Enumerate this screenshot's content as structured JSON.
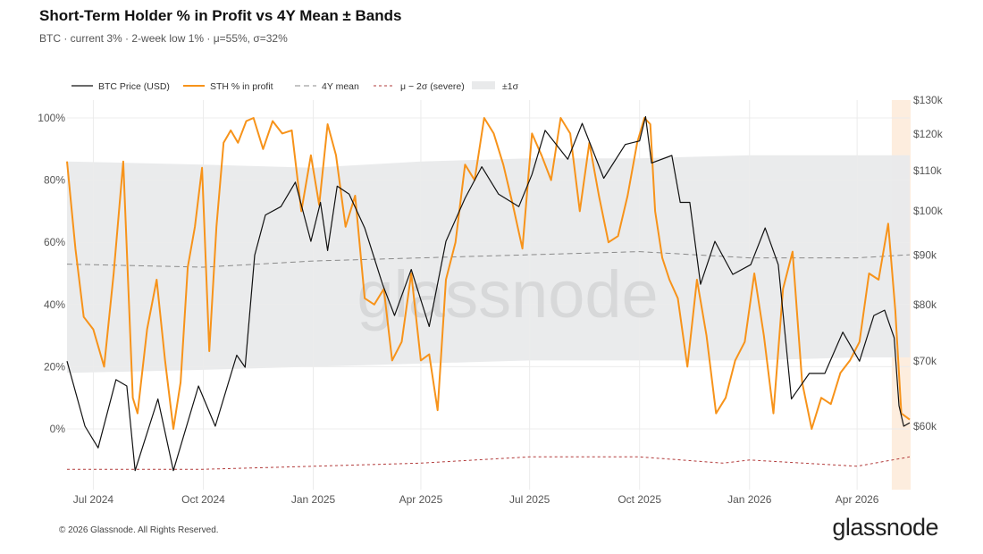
{
  "header": {
    "title": "Short-Term Holder % in Profit vs 4Y Mean ± Bands",
    "subtitle": "BTC · current 3% · 2-week low 1% · μ=55%, σ=32%"
  },
  "footer": {
    "copyright": "© 2026 Glassnode. All Rights Reserved.",
    "brand": "glassnode",
    "watermark": "glassnode"
  },
  "colors": {
    "price": "#111111",
    "sth": "#f7931a",
    "mean": "#8a8a8a",
    "severe": "#b23a3a",
    "band": "#e9eaeb",
    "highlight": "#fde9d6"
  },
  "chart_data": {
    "type": "line",
    "title": "Short-Term Holder % in Profit vs 4Y Mean ± Bands",
    "x_range": [
      "2024-06-09",
      "2026-05-15"
    ],
    "highlight_range": [
      "2026-04-30",
      "2026-05-16"
    ],
    "legend": {
      "placement": "top-left"
    },
    "x_ticks": [
      {
        "date": "2024-07-01",
        "label": "Jul 2024"
      },
      {
        "date": "2024-10-01",
        "label": "Oct 2024"
      },
      {
        "date": "2025-01-01",
        "label": "Jan 2025"
      },
      {
        "date": "2025-04-01",
        "label": "Apr 2025"
      },
      {
        "date": "2025-07-01",
        "label": "Jul 2025"
      },
      {
        "date": "2025-10-01",
        "label": "Oct 2025"
      },
      {
        "date": "2026-01-01",
        "label": "Jan 2026"
      },
      {
        "date": "2026-04-01",
        "label": "Apr 2026"
      }
    ],
    "y_left": {
      "unit": "%",
      "ticks": [
        0,
        20,
        40,
        60,
        80,
        100
      ],
      "labels": [
        "0%",
        "20%",
        "40%",
        "60%",
        "80%",
        "100%"
      ],
      "range": [
        -13,
        102
      ]
    },
    "y_right": {
      "unit": "USD",
      "scale": "log",
      "ticks": [
        60000,
        70000,
        80000,
        90000,
        100000,
        110000,
        120000,
        130000
      ],
      "labels": [
        "$60k",
        "$70k",
        "$80k",
        "$90k",
        "$100k",
        "$110k",
        "$120k",
        "$130k"
      ],
      "range": [
        52000,
        130000
      ]
    },
    "band": {
      "name": "±1σ",
      "x": [
        "2024-06-09",
        "2024-10-01",
        "2025-01-01",
        "2025-04-01",
        "2025-07-01",
        "2025-10-01",
        "2026-01-01",
        "2026-04-01",
        "2026-05-15"
      ],
      "upper": [
        86,
        85,
        84,
        86,
        87,
        87,
        88,
        88,
        88
      ],
      "lower": [
        18,
        19,
        20,
        21,
        22,
        22,
        22,
        23,
        23
      ]
    },
    "series": [
      {
        "name": "BTC Price (USD)",
        "axis": "right",
        "x": [
          "2024-06-09",
          "2024-06-24",
          "2024-07-05",
          "2024-07-20",
          "2024-07-29",
          "2024-08-05",
          "2024-08-24",
          "2024-09-06",
          "2024-09-27",
          "2024-10-11",
          "2024-10-29",
          "2024-11-05",
          "2024-11-13",
          "2024-11-22",
          "2024-12-05",
          "2024-12-17",
          "2024-12-30",
          "2025-01-07",
          "2025-01-13",
          "2025-01-21",
          "2025-01-31",
          "2025-02-13",
          "2025-02-28",
          "2025-03-10",
          "2025-03-24",
          "2025-04-08",
          "2025-04-22",
          "2025-05-08",
          "2025-05-22",
          "2025-06-05",
          "2025-06-22",
          "2025-07-03",
          "2025-07-14",
          "2025-08-02",
          "2025-08-14",
          "2025-09-01",
          "2025-09-19",
          "2025-10-01",
          "2025-10-06",
          "2025-10-11",
          "2025-10-28",
          "2025-11-04",
          "2025-11-12",
          "2025-11-21",
          "2025-12-03",
          "2025-12-18",
          "2026-01-02",
          "2026-01-14",
          "2026-01-25",
          "2026-02-05",
          "2026-02-20",
          "2026-03-05",
          "2026-03-20",
          "2026-04-03",
          "2026-04-15",
          "2026-04-24",
          "2026-05-02",
          "2026-05-06",
          "2026-05-10",
          "2026-05-15"
        ],
        "values": [
          70000,
          60000,
          57000,
          67000,
          66000,
          54000,
          64000,
          54000,
          66000,
          60000,
          71000,
          69000,
          90000,
          99000,
          101000,
          107000,
          93000,
          102000,
          91000,
          106000,
          104000,
          96000,
          84000,
          78000,
          87000,
          76000,
          93000,
          103000,
          111000,
          104000,
          101000,
          109000,
          121000,
          113000,
          123000,
          108000,
          117000,
          118000,
          125000,
          112000,
          114000,
          102000,
          102000,
          84000,
          93000,
          86000,
          88000,
          96000,
          88000,
          64000,
          68000,
          68000,
          75000,
          70000,
          78000,
          79000,
          74000,
          63000,
          60000,
          60500
        ]
      },
      {
        "name": "STH % in profit",
        "axis": "left",
        "x": [
          "2024-06-09",
          "2024-06-16",
          "2024-06-23",
          "2024-07-01",
          "2024-07-10",
          "2024-07-18",
          "2024-07-26",
          "2024-08-03",
          "2024-08-07",
          "2024-08-15",
          "2024-08-23",
          "2024-08-30",
          "2024-09-06",
          "2024-09-12",
          "2024-09-18",
          "2024-09-24",
          "2024-09-30",
          "2024-10-06",
          "2024-10-12",
          "2024-10-18",
          "2024-10-24",
          "2024-10-30",
          "2024-11-06",
          "2024-11-12",
          "2024-11-20",
          "2024-11-28",
          "2024-12-06",
          "2024-12-14",
          "2024-12-22",
          "2024-12-30",
          "2025-01-06",
          "2025-01-13",
          "2025-01-20",
          "2025-01-28",
          "2025-02-05",
          "2025-02-13",
          "2025-02-21",
          "2025-03-01",
          "2025-03-08",
          "2025-03-16",
          "2025-03-24",
          "2025-04-01",
          "2025-04-08",
          "2025-04-15",
          "2025-04-22",
          "2025-04-30",
          "2025-05-08",
          "2025-05-16",
          "2025-05-24",
          "2025-06-01",
          "2025-06-09",
          "2025-06-17",
          "2025-06-25",
          "2025-07-03",
          "2025-07-11",
          "2025-07-19",
          "2025-07-27",
          "2025-08-04",
          "2025-08-12",
          "2025-08-20",
          "2025-08-28",
          "2025-09-05",
          "2025-09-13",
          "2025-09-21",
          "2025-09-29",
          "2025-10-05",
          "2025-10-10",
          "2025-10-14",
          "2025-10-20",
          "2025-10-26",
          "2025-11-02",
          "2025-11-10",
          "2025-11-18",
          "2025-11-26",
          "2025-12-04",
          "2025-12-12",
          "2025-12-20",
          "2025-12-28",
          "2026-01-05",
          "2026-01-13",
          "2026-01-21",
          "2026-01-29",
          "2026-02-06",
          "2026-02-14",
          "2026-02-22",
          "2026-03-02",
          "2026-03-10",
          "2026-03-18",
          "2026-03-26",
          "2026-04-03",
          "2026-04-11",
          "2026-04-19",
          "2026-04-27",
          "2026-05-03",
          "2026-05-08",
          "2026-05-15"
        ],
        "values": [
          86,
          58,
          36,
          32,
          20,
          50,
          86,
          10,
          5,
          32,
          48,
          22,
          0,
          15,
          52,
          65,
          84,
          25,
          65,
          92,
          96,
          92,
          99,
          100,
          90,
          99,
          95,
          96,
          70,
          88,
          72,
          98,
          88,
          65,
          75,
          42,
          40,
          45,
          22,
          28,
          50,
          22,
          24,
          6,
          48,
          60,
          85,
          80,
          100,
          95,
          85,
          72,
          58,
          95,
          88,
          80,
          100,
          95,
          70,
          92,
          75,
          60,
          62,
          75,
          92,
          100,
          98,
          70,
          55,
          48,
          42,
          20,
          48,
          30,
          5,
          10,
          22,
          28,
          50,
          30,
          5,
          45,
          57,
          15,
          0,
          10,
          8,
          18,
          22,
          28,
          50,
          48,
          66,
          38,
          5,
          3
        ]
      },
      {
        "name": "4Y mean",
        "axis": "left",
        "x": [
          "2024-06-09",
          "2024-10-01",
          "2025-01-01",
          "2025-04-01",
          "2025-07-01",
          "2025-10-01",
          "2026-01-01",
          "2026-04-01",
          "2026-05-15"
        ],
        "values": [
          53,
          52,
          54,
          55,
          56,
          57,
          55,
          55,
          56
        ]
      },
      {
        "name": "μ − 2σ (severe)",
        "axis": "left",
        "x": [
          "2024-06-09",
          "2024-10-01",
          "2025-01-01",
          "2025-04-01",
          "2025-07-01",
          "2025-10-01",
          "2025-12-10",
          "2026-01-01",
          "2026-04-01",
          "2026-05-15"
        ],
        "values": [
          -13,
          -13,
          -12,
          -11,
          -9,
          -9,
          -11,
          -10,
          -12,
          -9
        ]
      }
    ]
  }
}
